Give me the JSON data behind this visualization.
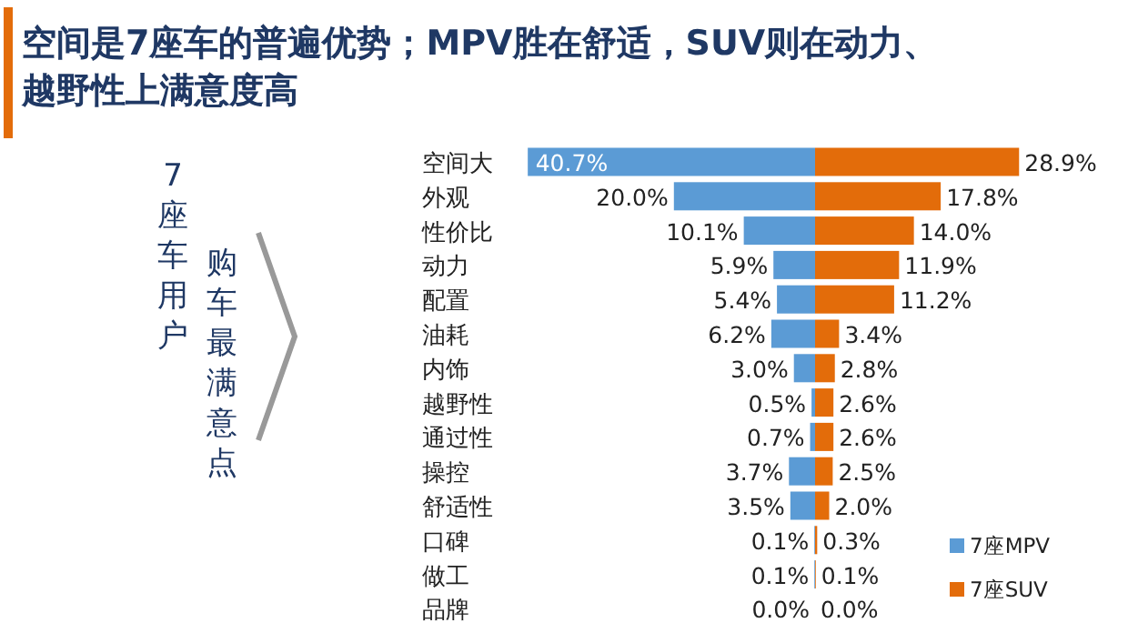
{
  "chart_data": [
    {
      "type": "bar",
      "orientation": "horizontal",
      "title": "空间是7座车的普遍优势；MPV胜在舒适，SUV则在动力、越野性上满意度高",
      "categories": [
        "空间大",
        "外观",
        "性价比",
        "动力",
        "配置",
        "油耗",
        "内饰",
        "越野性",
        "通过性",
        "操控",
        "舒适性",
        "口碑",
        "做工",
        "品牌"
      ],
      "series": [
        {
          "name": "7座MPV",
          "color": "#5b9bd5",
          "values": [
            40.7,
            20.0,
            10.1,
            5.9,
            5.4,
            6.2,
            3.0,
            0.5,
            0.7,
            3.7,
            3.5,
            0.1,
            0.1,
            0.0
          ],
          "value_labels": [
            "40.7%",
            "20.0%",
            "10.1%",
            "5.9%",
            "5.4%",
            "6.2%",
            "3.0%",
            "0.5%",
            "0.7%",
            "3.7%",
            "3.5%",
            "0.1%",
            "0.1%",
            "0.0%"
          ]
        }
      ],
      "legend": "bottom right",
      "annotations": [
        "7座车用户",
        "购车最满意点"
      ]
    },
    {
      "type": "bar",
      "orientation": "horizontal",
      "categories": [
        null,
        null,
        null,
        null,
        null,
        null,
        null,
        null,
        null,
        null,
        null,
        null,
        null,
        null
      ],
      "series": [
        {
          "name": "7座SUV",
          "color": "#e36c0a",
          "values": [
            28.9,
            17.8,
            14.0,
            11.9,
            11.2,
            3.4,
            2.8,
            2.6,
            2.6,
            2.5,
            2.0,
            0.3,
            0.1,
            0.0
          ],
          "value_labels": [
            "28.9%",
            "17.8%",
            "14.0%",
            "11.9%",
            "11.2%",
            "3.4%",
            "2.8%",
            "2.6%",
            "2.6%",
            "2.5%",
            "2.0%",
            "0.3%",
            "0.1%",
            "0.0%"
          ]
        }
      ],
      "legend": "bottom right"
    }
  ]
}
